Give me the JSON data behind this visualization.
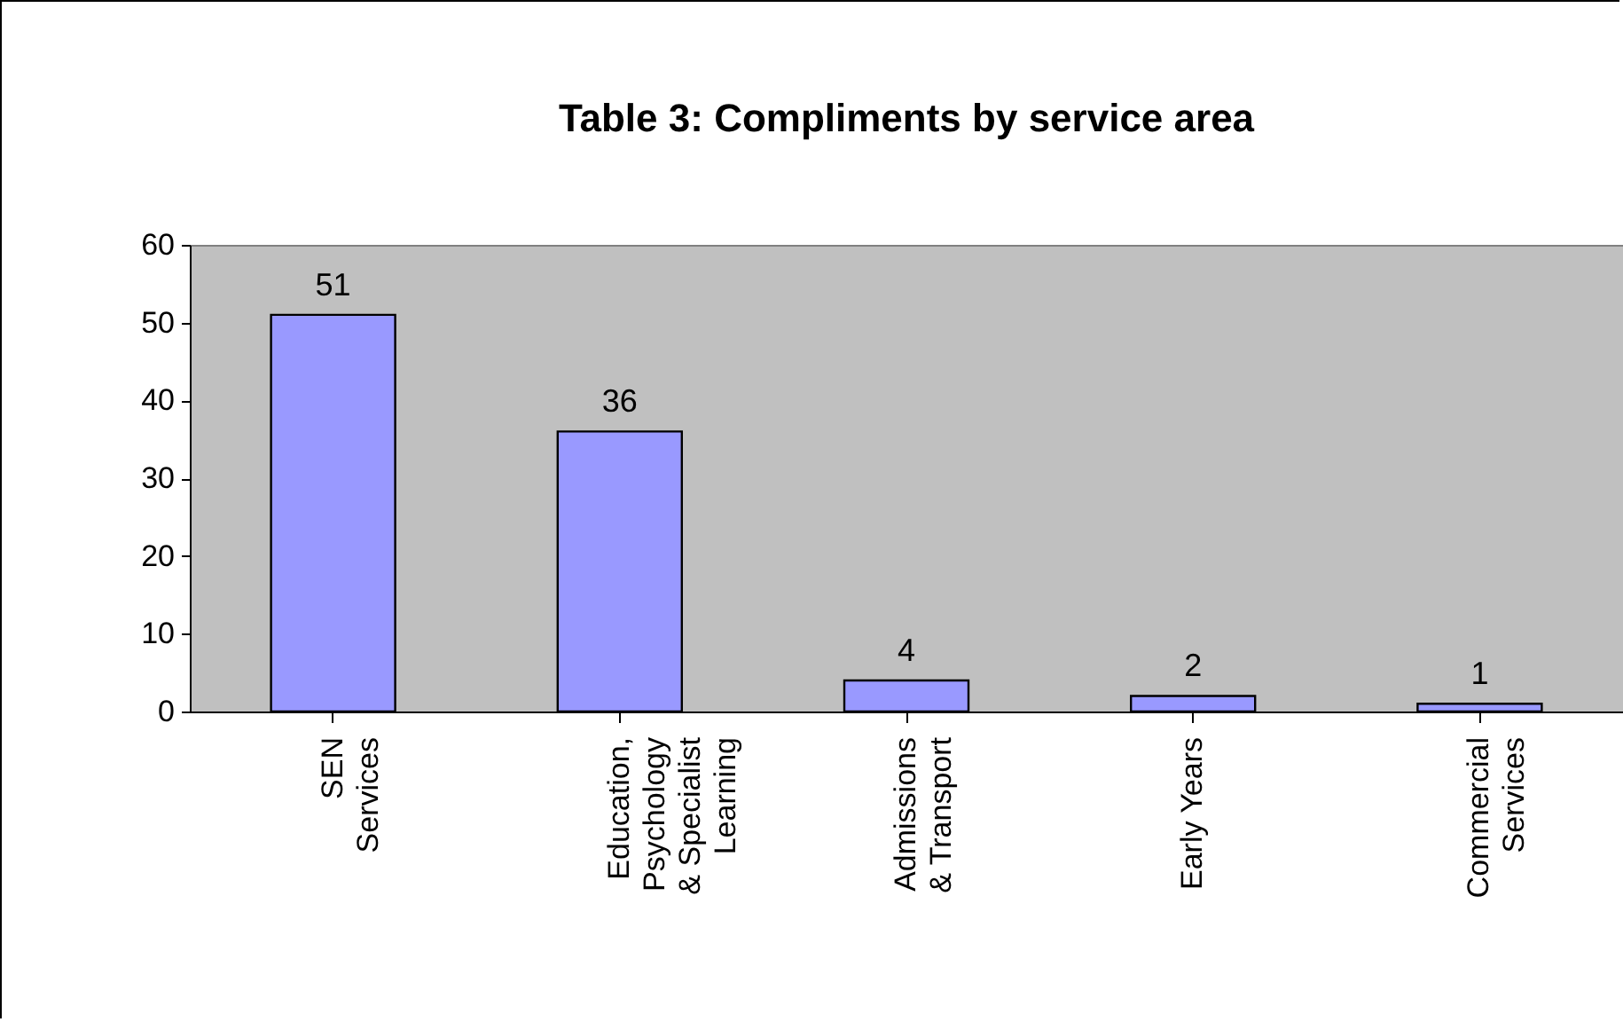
{
  "chart_data": {
    "type": "bar",
    "title": "Table 3: Compliments by service area",
    "categories": [
      "SEN\nServices",
      "Education,\nPsychology\n& Specialist\nLearning",
      "Admissions\n& Transport",
      "Early Years",
      "Commercial\nServices"
    ],
    "values": [
      51,
      36,
      4,
      2,
      1
    ],
    "color": "#9999ff",
    "ylim": [
      0,
      60
    ],
    "yticks": [
      0,
      10,
      20,
      30,
      40,
      50,
      60
    ],
    "grid": false,
    "data_labels": true
  }
}
